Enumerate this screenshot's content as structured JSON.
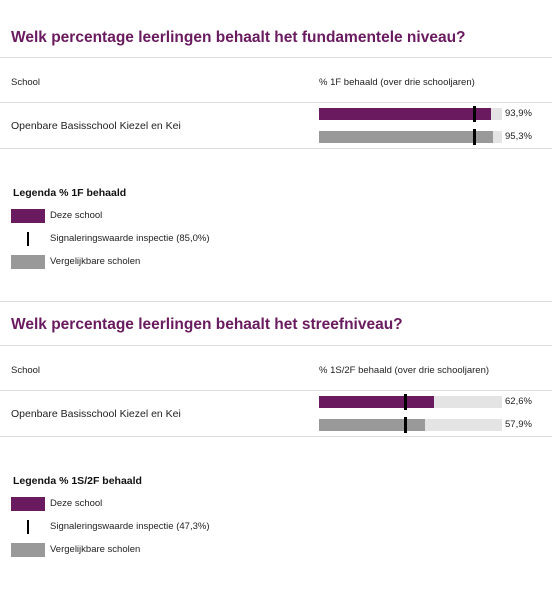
{
  "colors": {
    "school": "#6a1a5e",
    "comparable": "#999999",
    "track": "#e4e4e4",
    "title": "#6a1a5e"
  },
  "chart_data": [
    {
      "type": "bar",
      "title": "Welk percentage leerlingen behaalt het fundamentele niveau?",
      "column_school": "School",
      "column_value": "% 1F behaald (over drie schooljaren)",
      "school_name": "Openbare Basisschool Kiezel en Kei",
      "xlim": [
        0,
        100
      ],
      "series": [
        {
          "name": "Deze school",
          "value": 93.9,
          "label": "93,9%"
        },
        {
          "name": "Vergelijkbare scholen",
          "value": 95.3,
          "label": "95,3%"
        }
      ],
      "signal_value": 85.0,
      "legend": {
        "title": "Legenda % 1F behaald",
        "items": [
          "Deze school",
          "Signaleringswaarde inspectie (85,0%)",
          "Vergelijkbare scholen"
        ]
      }
    },
    {
      "type": "bar",
      "title": "Welk percentage leerlingen behaalt het streefniveau?",
      "column_school": "School",
      "column_value": "% 1S/2F behaald (over drie schooljaren)",
      "school_name": "Openbare Basisschool Kiezel en Kei",
      "xlim": [
        0,
        100
      ],
      "series": [
        {
          "name": "Deze school",
          "value": 62.6,
          "label": "62,6%"
        },
        {
          "name": "Vergelijkbare scholen",
          "value": 57.9,
          "label": "57,9%"
        }
      ],
      "signal_value": 47.3,
      "legend": {
        "title": "Legenda % 1S/2F behaald",
        "items": [
          "Deze school",
          "Signaleringswaarde inspectie (47,3%)",
          "Vergelijkbare scholen"
        ]
      }
    }
  ]
}
